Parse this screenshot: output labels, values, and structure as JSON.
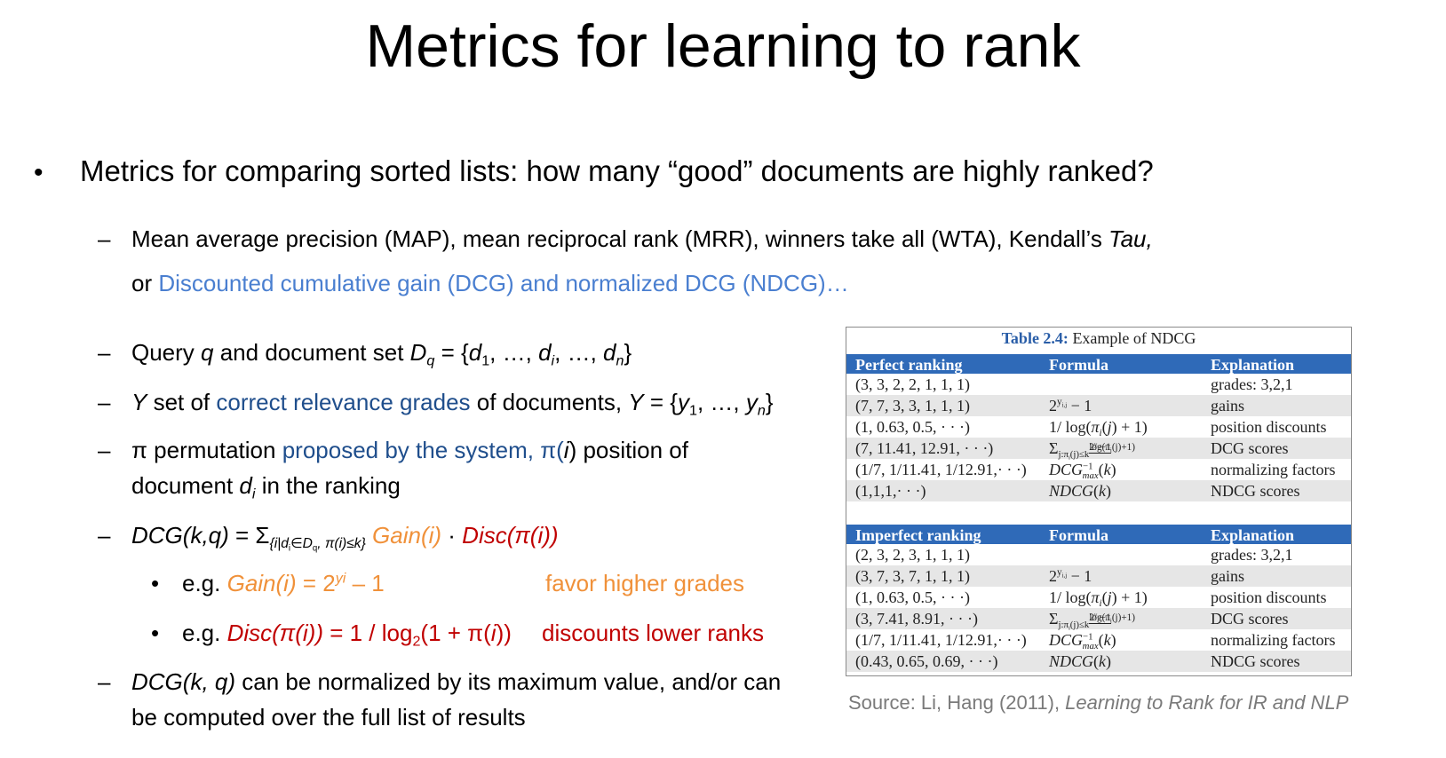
{
  "title": "Metrics for learning to rank",
  "bullet_main": "Metrics for comparing sorted lists: how many “good” documents are highly ranked?",
  "metrics_line1_text": "Mean average precision (MAP), mean reciprocal rank (MRR), winners take all (WTA), Kendall’s ",
  "metrics_line1_tau": "Tau,",
  "metrics_line2_or": "or ",
  "metrics_line2_dcg": "Discounted cumulative gain (DCG) and normalized DCG (NDCG)…",
  "query_line": {
    "a": "Query ",
    "q": "q",
    "b": " and document set  ",
    "D": "D",
    "Dsub": "q",
    "c": " = {",
    "d1": "d",
    "d1sub": "1",
    "e": ", …, ",
    "di": "d",
    "disub": "i",
    "f": ", …, ",
    "dn": "d",
    "dnsub": "n",
    "g": "}"
  },
  "y_line": {
    "Y": "Y",
    "a": " set of ",
    "highlight": "correct relevance grades",
    "b": " of documents, ",
    "Y2": "Y",
    "c": " = {",
    "y1": "y",
    "y1sub": "1",
    "d": ", …, ",
    "yn": "y",
    "ynsub": "n",
    "e": "}"
  },
  "pi_line": {
    "pi": "π",
    "a": " permutation ",
    "highlight": "proposed by the system,",
    "b": " π(",
    "i": "i",
    "c": ") position of",
    "line2a": "document ",
    "d": "d",
    "dsub": "i",
    "line2b": " in the ranking"
  },
  "dcg_line": {
    "dcg": "DCG",
    "args": "(k,q)",
    "eq": " = Σ",
    "sum_sub": "{i|d",
    "sum_sub_i": "i",
    "sum_sub2": "∈D",
    "sum_sub_q": "q",
    "sum_sub3": ", π(i)≤k}",
    "gain": " Gain(i)",
    "dot": " · ",
    "disc": "Disc(π(i))"
  },
  "eg_gain": {
    "eg": "e.g. ",
    "lhs": "Gain(i)",
    "rhs": " = 2",
    "sup": "yi",
    "tail": " – 1",
    "note": "favor higher grades"
  },
  "eg_disc": {
    "eg": "e.g. ",
    "lhs": "Disc(π(i))",
    "rhs": "  = 1 / log",
    "sub": "2",
    "tail": "(1 + π(",
    "i": "i",
    "close": "))",
    "note": "discounts lower ranks"
  },
  "norm_line": {
    "dcg": "DCG",
    "args": "(k, q)",
    "a": " can be normalized by its maximum value, and/or can",
    "line2": "be computed over the full list of results"
  },
  "dash": "–",
  "dot": "•",
  "table": {
    "caption_num": "Table 2.4:",
    "caption_text": " Example of NDCG",
    "perfect": {
      "headers": [
        "Perfect ranking",
        "Formula",
        "Explanation"
      ],
      "rows": [
        [
          "(3, 3, 2, 2, 1, 1, 1)",
          "",
          "grades: 3,2,1"
        ],
        [
          "(7, 7, 3, 3, 1, 1, 1)",
          "2^{y_i,j} − 1",
          "gains"
        ],
        [
          "(1, 0.63, 0.5, · · ·)",
          "1/ log(π_i(j) + 1)",
          "position discounts"
        ],
        [
          "(7, 11.41, 12.91, · · ·)",
          "Σ_{j:π_i(j)≤k} (2^{y_i,j} − 1)/log(π_i(j)+1)",
          "DCG scores"
        ],
        [
          "(1/7, 1/11.41, 1/12.91,· · ·)",
          "DCG^{-1}_{max}(k)",
          "normalizing factors"
        ],
        [
          "(1,1,1,· · ·)",
          "NDCG(k)",
          "NDCG scores"
        ]
      ]
    },
    "imperfect": {
      "headers": [
        "Imperfect ranking",
        "Formula",
        "Explanation"
      ],
      "rows": [
        [
          "(2, 3, 2, 3, 1, 1, 1)",
          "",
          "grades: 3,2,1"
        ],
        [
          "(3, 7, 3, 7, 1, 1, 1)",
          "2^{y_i,j} − 1",
          "gains"
        ],
        [
          "(1, 0.63, 0.5, · · ·)",
          "1/ log(π_i(j) + 1)",
          "position discounts"
        ],
        [
          "(3, 7.41, 8.91, · · ·)",
          "Σ_{j:π_i(j)≤k} (2^{y_i,j} − 1)/log(π_i(j)+1)",
          "DCG scores"
        ],
        [
          "(1/7, 1/11.41, 1/12.91,· · ·)",
          "DCG^{-1}_{max}(k)",
          "normalizing factors"
        ],
        [
          "(0.43, 0.65, 0.69, · · ·)",
          "NDCG(k)",
          "NDCG scores"
        ]
      ]
    }
  },
  "source": {
    "prefix": "Source: Li, Hang (2011), ",
    "title": "Learning to Rank for IR and NLP"
  }
}
